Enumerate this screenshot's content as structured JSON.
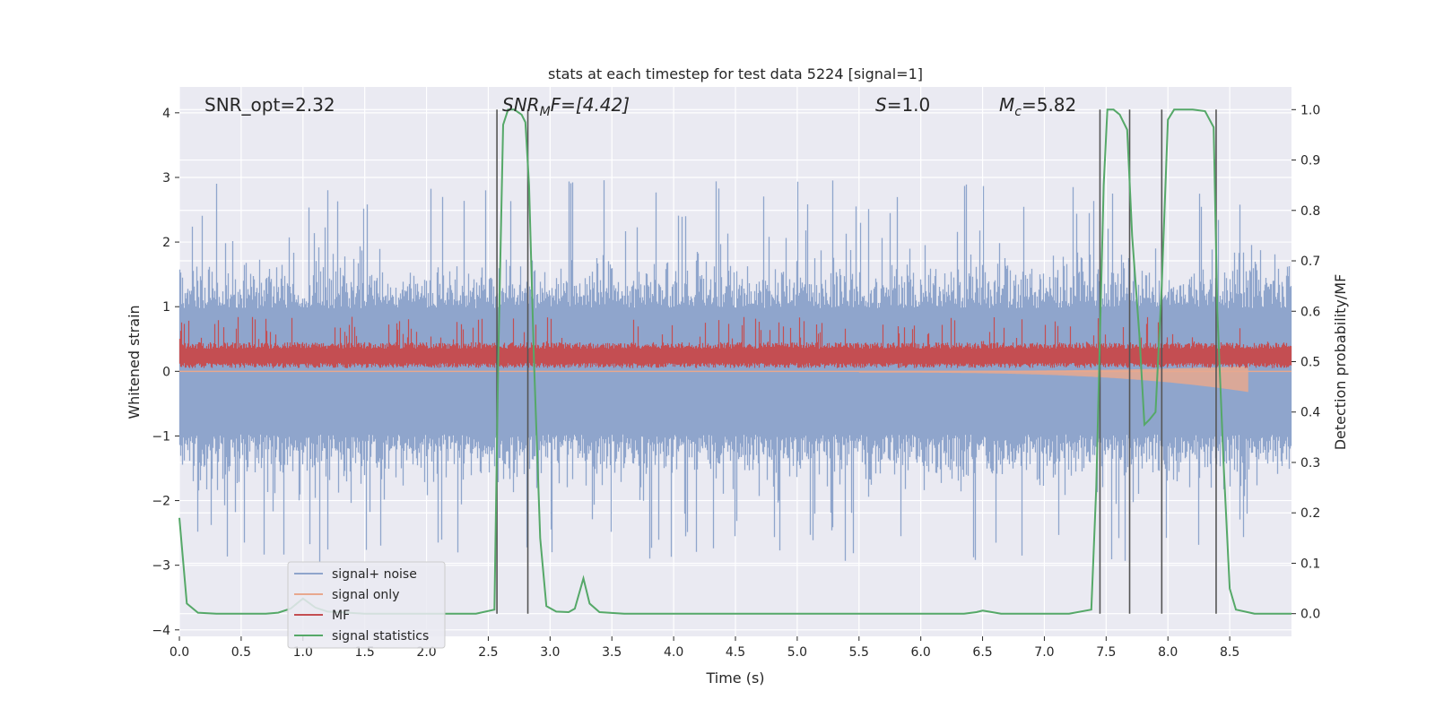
{
  "chart_data": {
    "type": "line",
    "title": "stats at each timestep for test data 5224 [signal=1]",
    "xlabel": "Time (s)",
    "ylabel_left": "Whitened strain",
    "ylabel_right": "Detection probability/MF",
    "xlim": [
      0.0,
      9.0
    ],
    "ylim_left": [
      -4.1,
      4.4
    ],
    "ylim_right": [
      -0.045,
      1.045
    ],
    "xticks": [
      "0.0",
      "0.5",
      "1.0",
      "1.5",
      "2.0",
      "2.5",
      "3.0",
      "3.5",
      "4.0",
      "4.5",
      "5.0",
      "5.5",
      "6.0",
      "6.5",
      "7.0",
      "7.5",
      "8.0",
      "8.5"
    ],
    "yticks_left": [
      "4",
      "3",
      "2",
      "1",
      "0",
      "−1",
      "−2",
      "−3",
      "−4"
    ],
    "yticks_right": [
      "1.0",
      "0.9",
      "0.8",
      "0.7",
      "0.6",
      "0.5",
      "0.4",
      "0.3",
      "0.2",
      "0.1",
      "0.0"
    ],
    "grid": true,
    "legend": {
      "placement": "lower-left",
      "entries": [
        {
          "label": "signal+ noise",
          "color": "#8fa5cc"
        },
        {
          "label": "signal only",
          "color": "#e8a88e"
        },
        {
          "label": "MF",
          "color": "#c44e52"
        },
        {
          "label": "signal statistics",
          "color": "#55a868"
        }
      ]
    },
    "annotations": {
      "snr_opt": "SNR_opt=2.32",
      "snr_mf_sym": "SNR",
      "snr_mf_sub": "M",
      "snr_mf_rest": "F=[4.42]",
      "s_sym": "S",
      "s_rest": "=1.0",
      "mc_sym": "M",
      "mc_sub": "c",
      "mc_rest": "=5.82"
    },
    "vertical_lines": [
      2.57,
      2.82,
      7.45,
      7.69,
      7.95,
      8.39
    ],
    "series": [
      {
        "name": "signal statistics",
        "axis": "right",
        "color": "#55a868",
        "x": [
          0.0,
          0.06,
          0.15,
          0.3,
          0.5,
          0.7,
          0.8,
          0.9,
          1.0,
          1.1,
          1.2,
          1.5,
          2.0,
          2.4,
          2.55,
          2.58,
          2.62,
          2.66,
          2.71,
          2.77,
          2.8,
          2.83,
          2.87,
          2.92,
          2.97,
          3.05,
          3.15,
          3.2,
          3.27,
          3.32,
          3.4,
          3.6,
          4.0,
          5.0,
          6.0,
          6.35,
          6.45,
          6.5,
          6.55,
          6.65,
          6.8,
          7.0,
          7.2,
          7.38,
          7.42,
          7.45,
          7.48,
          7.51,
          7.56,
          7.61,
          7.67,
          7.71,
          7.77,
          7.81,
          7.85,
          7.9,
          7.95,
          8.0,
          8.05,
          8.1,
          8.15,
          8.2,
          8.3,
          8.37,
          8.4,
          8.45,
          8.5,
          8.55,
          8.7,
          9.0
        ],
        "y": [
          0.19,
          0.02,
          0.002,
          0.0,
          0.0,
          0.0,
          0.002,
          0.01,
          0.03,
          0.012,
          0.004,
          0.0,
          0.0,
          0.0,
          0.008,
          0.5,
          0.97,
          1.0,
          1.0,
          0.99,
          0.975,
          0.85,
          0.5,
          0.15,
          0.015,
          0.004,
          0.003,
          0.01,
          0.07,
          0.02,
          0.003,
          0.0,
          0.0,
          0.0,
          0.0,
          0.0,
          0.003,
          0.006,
          0.004,
          0.0,
          0.0,
          0.0,
          0.0,
          0.008,
          0.25,
          0.55,
          0.85,
          1.0,
          1.0,
          0.99,
          0.96,
          0.75,
          0.55,
          0.375,
          0.385,
          0.4,
          0.65,
          0.98,
          1.0,
          1.0,
          1.0,
          1.0,
          0.997,
          0.965,
          0.6,
          0.3,
          0.05,
          0.008,
          0.0,
          0.0
        ]
      }
    ],
    "generated_series_note": "",
    "noise_band": {
      "axis": "left",
      "center": 0.0,
      "typical": 1.3,
      "peak": 3.4
    },
    "mf_band": {
      "axis": "left",
      "center": 0.25,
      "typical": 0.2,
      "peak": 0.6
    },
    "signal_band": {
      "axis": "left",
      "x_start": 5.5,
      "x_end": 8.65,
      "amplitude_end": 0.3
    }
  }
}
